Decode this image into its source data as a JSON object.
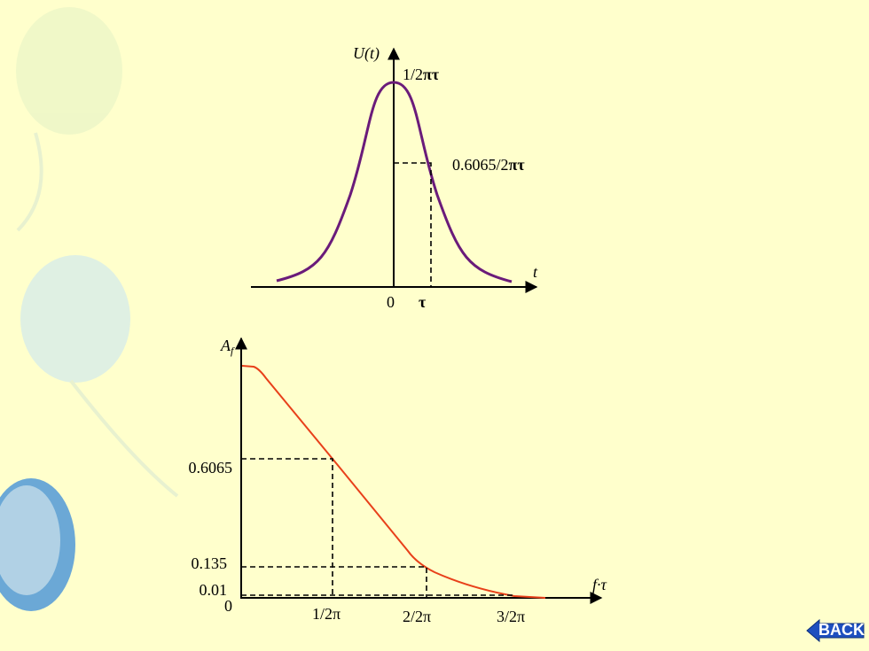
{
  "top_plot": {
    "y_axis_label": "U(t)",
    "peak_label": {
      "plain": "1/2",
      "bold": "πτ"
    },
    "mid_label": {
      "plain": "0.6065/2",
      "bold": "πτ"
    },
    "x_axis_label": "t",
    "origin_label": "0",
    "tau_label": "τ"
  },
  "bottom_plot": {
    "y_axis_label": {
      "main": "A",
      "sub": "f"
    },
    "y_labels": [
      "0.6065",
      "0.135",
      "0.01",
      "0"
    ],
    "x_labels": [
      "1/2π",
      "2/2π",
      "3/2π"
    ],
    "x_axis_label": "f·τ"
  },
  "back_button": "BACK"
}
